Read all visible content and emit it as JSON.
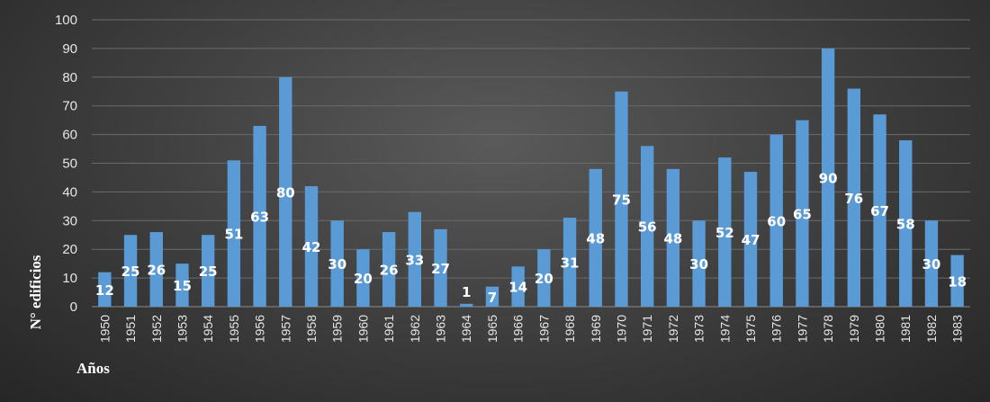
{
  "chart_data": {
    "type": "bar",
    "title": "",
    "xlabel": "Años",
    "ylabel": "N° edificios",
    "ylim": [
      0,
      100
    ],
    "yticks": [
      0,
      10,
      20,
      30,
      40,
      50,
      60,
      70,
      80,
      90,
      100
    ],
    "grid": true,
    "legend": "none",
    "bar_color": "#5b9bd5",
    "categories": [
      "1950",
      "1951",
      "1952",
      "1953",
      "1954",
      "1955",
      "1956",
      "1957",
      "1958",
      "1959",
      "1960",
      "1961",
      "1962",
      "1963",
      "1964",
      "1965",
      "1966",
      "1967",
      "1968",
      "1969",
      "1970",
      "1971",
      "1972",
      "1973",
      "1974",
      "1975",
      "1976",
      "1977",
      "1978",
      "1979",
      "1980",
      "1981",
      "1982",
      "1983"
    ],
    "values": [
      12,
      25,
      26,
      15,
      25,
      51,
      63,
      80,
      42,
      30,
      20,
      26,
      33,
      27,
      1,
      7,
      14,
      20,
      31,
      48,
      75,
      56,
      48,
      30,
      52,
      47,
      60,
      65,
      90,
      76,
      67,
      58,
      30,
      18
    ],
    "data_labels": true
  }
}
